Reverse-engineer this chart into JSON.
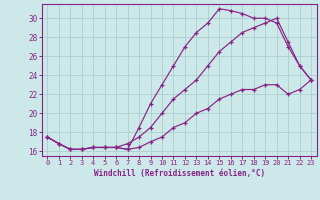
{
  "xlabel": "Windchill (Refroidissement éolien,°C)",
  "bg_color": "#cce8e8",
  "grid_color": "#aacece",
  "line_color": "#882288",
  "spine_color": "#882288",
  "xlim": [
    -0.5,
    23.5
  ],
  "ylim": [
    15.5,
    31.5
  ],
  "xticks": [
    0,
    1,
    2,
    3,
    4,
    5,
    6,
    7,
    8,
    9,
    10,
    11,
    12,
    13,
    14,
    15,
    16,
    17,
    18,
    19,
    20,
    21,
    22,
    23
  ],
  "yticks": [
    16,
    18,
    20,
    22,
    24,
    26,
    28,
    30
  ],
  "line1_x": [
    0,
    1,
    2,
    3,
    4,
    5,
    6,
    7,
    8,
    9,
    10,
    11,
    12,
    13,
    14,
    15,
    16,
    17,
    18,
    19,
    20,
    21,
    22,
    23
  ],
  "line1_y": [
    17.5,
    16.8,
    16.2,
    16.2,
    16.4,
    16.4,
    16.4,
    16.2,
    18.5,
    21.0,
    23.0,
    25.0,
    27.0,
    28.5,
    29.5,
    31.0,
    30.8,
    30.5,
    30.0,
    30.0,
    29.5,
    27.0,
    25.0,
    23.5
  ],
  "line2_x": [
    0,
    1,
    2,
    3,
    4,
    5,
    6,
    7,
    8,
    9,
    10,
    11,
    12,
    13,
    14,
    15,
    16,
    17,
    18,
    19,
    20,
    21,
    22,
    23
  ],
  "line2_y": [
    17.5,
    16.8,
    16.2,
    16.2,
    16.4,
    16.4,
    16.4,
    16.8,
    17.5,
    18.5,
    20.0,
    21.5,
    22.5,
    23.5,
    25.0,
    26.5,
    27.5,
    28.5,
    29.0,
    29.5,
    30.0,
    27.5,
    25.0,
    23.5
  ],
  "line3_x": [
    0,
    1,
    2,
    3,
    4,
    5,
    6,
    7,
    8,
    9,
    10,
    11,
    12,
    13,
    14,
    15,
    16,
    17,
    18,
    19,
    20,
    21,
    22,
    23
  ],
  "line3_y": [
    17.5,
    16.8,
    16.2,
    16.2,
    16.4,
    16.4,
    16.4,
    16.2,
    16.4,
    17.0,
    17.5,
    18.5,
    19.0,
    20.0,
    20.5,
    21.5,
    22.0,
    22.5,
    22.5,
    23.0,
    23.0,
    22.0,
    22.5,
    23.5
  ]
}
